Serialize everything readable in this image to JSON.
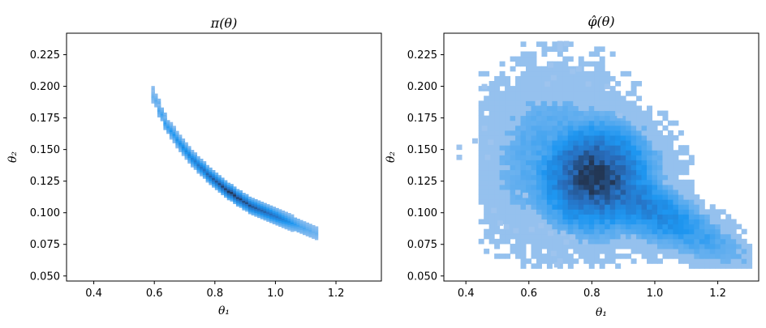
{
  "chart_data": [
    {
      "type": "heatmap",
      "title": "π(θ)",
      "xlabel": "θ₁",
      "ylabel": "θ₂",
      "xlim": [
        0.31,
        1.35
      ],
      "ylim": [
        0.046,
        0.242
      ],
      "xticks": [
        "0.4",
        "0.6",
        "0.8",
        "1.0",
        "1.2"
      ],
      "yticks": [
        "0.050",
        "0.075",
        "0.100",
        "0.125",
        "0.150",
        "0.175",
        "0.200",
        "0.225"
      ],
      "grid": false,
      "bins": {
        "x_start": 0.585,
        "x_step": 0.01,
        "y_start": 0.08,
        "y_step": 0.003
      },
      "cells": [
        [
          0.59,
          0.195,
          0.2
        ],
        [
          0.59,
          0.192,
          0.2
        ],
        [
          0.6,
          0.189,
          0.25
        ],
        [
          0.61,
          0.185,
          0.3
        ],
        [
          0.61,
          0.181,
          0.3
        ],
        [
          0.62,
          0.178,
          0.35
        ],
        [
          0.63,
          0.174,
          0.35
        ],
        [
          0.63,
          0.171,
          0.4
        ],
        [
          0.64,
          0.168,
          0.4
        ],
        [
          0.65,
          0.165,
          0.45
        ],
        [
          0.66,
          0.162,
          0.45
        ],
        [
          0.67,
          0.158,
          0.5
        ],
        [
          0.68,
          0.155,
          0.5
        ],
        [
          0.69,
          0.152,
          0.55
        ],
        [
          0.7,
          0.149,
          0.55
        ],
        [
          0.71,
          0.146,
          0.6
        ],
        [
          0.72,
          0.143,
          0.6
        ],
        [
          0.73,
          0.141,
          0.65
        ],
        [
          0.74,
          0.138,
          0.7
        ],
        [
          0.75,
          0.136,
          0.7
        ],
        [
          0.76,
          0.134,
          0.75
        ],
        [
          0.77,
          0.131,
          0.8
        ],
        [
          0.78,
          0.129,
          0.8
        ],
        [
          0.79,
          0.127,
          0.85
        ],
        [
          0.8,
          0.125,
          0.85
        ],
        [
          0.81,
          0.123,
          0.9
        ],
        [
          0.82,
          0.121,
          0.95
        ],
        [
          0.83,
          0.119,
          0.95
        ],
        [
          0.84,
          0.117,
          1.0
        ],
        [
          0.85,
          0.116,
          1.0
        ],
        [
          0.86,
          0.114,
          1.0
        ],
        [
          0.87,
          0.112,
          0.95
        ],
        [
          0.88,
          0.111,
          0.95
        ],
        [
          0.89,
          0.109,
          0.9
        ],
        [
          0.9,
          0.108,
          0.9
        ],
        [
          0.91,
          0.106,
          0.9
        ],
        [
          0.92,
          0.105,
          0.85
        ],
        [
          0.93,
          0.104,
          0.85
        ],
        [
          0.94,
          0.103,
          0.8
        ],
        [
          0.95,
          0.102,
          0.8
        ],
        [
          0.96,
          0.101,
          0.8
        ],
        [
          0.97,
          0.1,
          0.75
        ],
        [
          0.98,
          0.099,
          0.75
        ],
        [
          0.99,
          0.098,
          0.7
        ],
        [
          1.0,
          0.097,
          0.7
        ],
        [
          1.01,
          0.096,
          0.65
        ],
        [
          1.02,
          0.095,
          0.6
        ],
        [
          1.03,
          0.094,
          0.55
        ],
        [
          1.04,
          0.093,
          0.5
        ],
        [
          1.05,
          0.092,
          0.45
        ],
        [
          1.06,
          0.091,
          0.4
        ],
        [
          1.07,
          0.09,
          0.35
        ],
        [
          1.08,
          0.089,
          0.3
        ],
        [
          1.09,
          0.088,
          0.3
        ],
        [
          1.1,
          0.087,
          0.25
        ],
        [
          1.11,
          0.086,
          0.25
        ],
        [
          1.12,
          0.085,
          0.2
        ],
        [
          1.13,
          0.084,
          0.2
        ]
      ],
      "band_halfwidth": 0.006
    },
    {
      "type": "heatmap",
      "title": "φ̂(θ)",
      "xlabel": "θ₁",
      "ylabel": "θ₂",
      "xlim": [
        0.33,
        1.33
      ],
      "ylim": [
        0.046,
        0.242
      ],
      "xticks": [
        "0.4",
        "0.6",
        "0.8",
        "1.0",
        "1.2"
      ],
      "yticks": [
        "0.050",
        "0.075",
        "0.100",
        "0.125",
        "0.150",
        "0.175",
        "0.200",
        "0.225"
      ],
      "grid": false,
      "peak": {
        "x": 0.8,
        "y": 0.127
      },
      "tail_end": {
        "x": 1.29,
        "y": 0.061
      },
      "outliers": [
        [
          0.37,
          0.15
        ],
        [
          0.37,
          0.142
        ],
        [
          0.45,
          0.165
        ],
        [
          0.45,
          0.198
        ],
        [
          0.42,
          0.155
        ],
        [
          0.46,
          0.142
        ],
        [
          0.47,
          0.154
        ],
        [
          0.48,
          0.1
        ],
        [
          0.5,
          0.09
        ],
        [
          0.52,
          0.087
        ],
        [
          0.55,
          0.084
        ],
        [
          0.58,
          0.112
        ],
        [
          0.6,
          0.085
        ],
        [
          0.63,
          0.088
        ],
        [
          0.66,
          0.082
        ],
        [
          0.7,
          0.082
        ],
        [
          0.73,
          0.079
        ],
        [
          0.67,
          0.066
        ],
        [
          0.68,
          0.057
        ],
        [
          0.69,
          0.06
        ],
        [
          0.71,
          0.075
        ],
        [
          0.77,
          0.075
        ],
        [
          0.69,
          0.232
        ],
        [
          0.69,
          0.228
        ],
        [
          0.71,
          0.232
        ],
        [
          0.73,
          0.21
        ],
        [
          0.75,
          0.212
        ],
        [
          0.78,
          0.2
        ],
        [
          0.84,
          0.198
        ],
        [
          0.88,
          0.175
        ],
        [
          0.66,
          0.215
        ],
        [
          0.67,
          0.205
        ],
        [
          0.65,
          0.2
        ],
        [
          0.62,
          0.185
        ]
      ]
    }
  ]
}
